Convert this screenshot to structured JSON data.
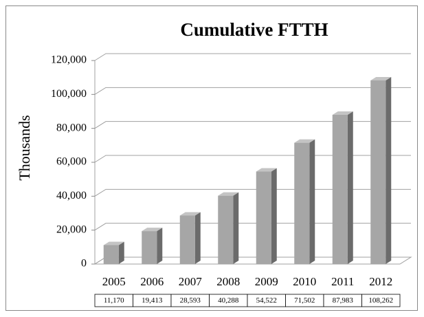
{
  "chart_data": {
    "type": "bar3d",
    "title": "Cumulative FTTH",
    "y_label": "Thousands",
    "categories": [
      "2005",
      "2006",
      "2007",
      "2008",
      "2009",
      "2010",
      "2011",
      "2012"
    ],
    "values": [
      11170,
      19413,
      28593,
      40288,
      54522,
      71502,
      87983,
      108262
    ],
    "value_labels": [
      "11,170",
      "19,413",
      "28,593",
      "40,288",
      "54,522",
      "71,502",
      "87,983",
      "108,262"
    ],
    "color": "#a6a6a6",
    "ylim": [
      0,
      120000
    ],
    "yticks": [
      0,
      {
        "value": 20000,
        "label": "20,000"
      },
      {
        "value": 40000,
        "label": "40,000"
      },
      {
        "value": 60000,
        "label": "60,000"
      },
      {
        "value": 80000,
        "label": "80,000"
      },
      {
        "value": 100000,
        "label": "100,000"
      },
      {
        "value": 120000,
        "label": "120,000"
      }
    ],
    "grid": true
  }
}
